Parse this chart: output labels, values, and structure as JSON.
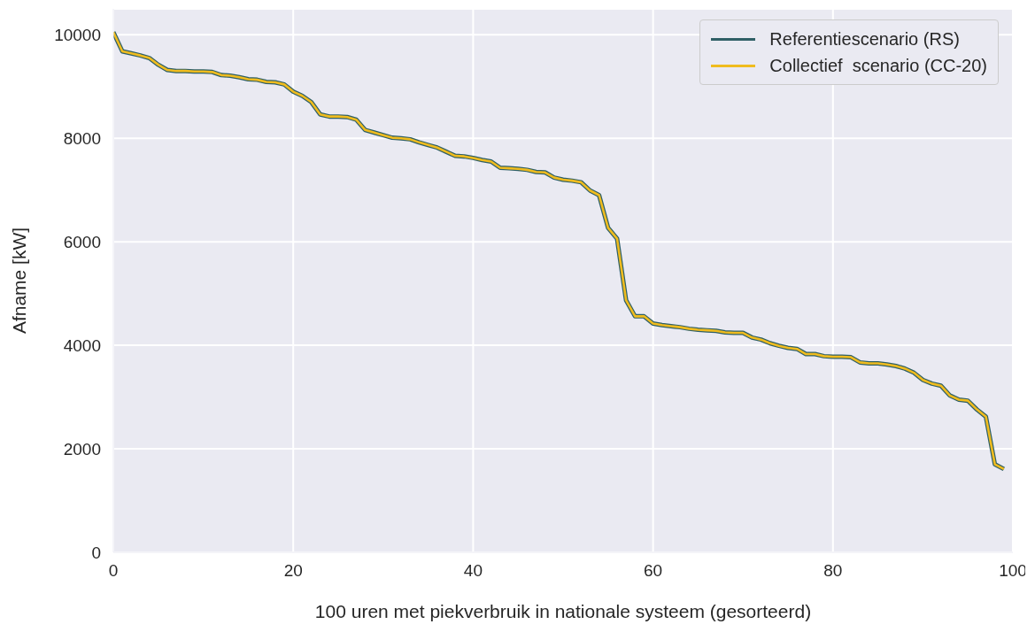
{
  "chart_data": {
    "type": "line",
    "xlabel": "100 uren met piekverbruik in nationale systeem (gesorteerd)",
    "ylabel": "Afname [kW]",
    "x": [
      0,
      1,
      2,
      3,
      4,
      5,
      6,
      7,
      8,
      9,
      10,
      11,
      12,
      13,
      14,
      15,
      16,
      17,
      18,
      19,
      20,
      21,
      22,
      23,
      24,
      25,
      26,
      27,
      28,
      29,
      30,
      31,
      32,
      33,
      34,
      35,
      36,
      37,
      38,
      39,
      40,
      41,
      42,
      43,
      44,
      45,
      46,
      47,
      48,
      49,
      50,
      51,
      52,
      53,
      54,
      55,
      56,
      57,
      58,
      59,
      60,
      61,
      62,
      63,
      64,
      65,
      66,
      67,
      68,
      69,
      70,
      71,
      72,
      73,
      74,
      75,
      76,
      77,
      78,
      79,
      80,
      81,
      82,
      83,
      84,
      85,
      86,
      87,
      88,
      89,
      90,
      91,
      92,
      93,
      94,
      95,
      96,
      97,
      98,
      99
    ],
    "series": [
      {
        "name": "Referentiescenario (RS)",
        "color": "#2f5f66",
        "values": [
          10050,
          9680,
          9640,
          9600,
          9550,
          9420,
          9320,
          9300,
          9300,
          9290,
          9290,
          9280,
          9220,
          9210,
          9180,
          9140,
          9130,
          9090,
          9080,
          9040,
          8900,
          8820,
          8700,
          8460,
          8420,
          8420,
          8410,
          8360,
          8160,
          8110,
          8060,
          8010,
          8000,
          7980,
          7920,
          7870,
          7820,
          7740,
          7660,
          7650,
          7620,
          7580,
          7550,
          7430,
          7420,
          7410,
          7390,
          7350,
          7340,
          7240,
          7200,
          7180,
          7150,
          6990,
          6900,
          6270,
          6060,
          4870,
          4560,
          4560,
          4420,
          4390,
          4370,
          4350,
          4320,
          4300,
          4290,
          4280,
          4250,
          4240,
          4240,
          4150,
          4110,
          4040,
          3990,
          3950,
          3930,
          3830,
          3830,
          3790,
          3780,
          3780,
          3770,
          3670,
          3650,
          3650,
          3630,
          3600,
          3550,
          3470,
          3330,
          3260,
          3220,
          3030,
          2950,
          2930,
          2760,
          2620,
          1700,
          1610
        ]
      },
      {
        "name": "Collectief  scenario (CC-20)",
        "color": "#f0bc1e",
        "values": [
          10050,
          9680,
          9640,
          9600,
          9550,
          9420,
          9320,
          9300,
          9300,
          9290,
          9290,
          9280,
          9220,
          9210,
          9180,
          9140,
          9130,
          9090,
          9080,
          9040,
          8900,
          8820,
          8700,
          8460,
          8420,
          8420,
          8410,
          8360,
          8160,
          8110,
          8060,
          8010,
          8000,
          7980,
          7920,
          7870,
          7820,
          7740,
          7660,
          7650,
          7620,
          7580,
          7550,
          7430,
          7420,
          7410,
          7390,
          7350,
          7340,
          7240,
          7200,
          7180,
          7150,
          6990,
          6900,
          6270,
          6060,
          4870,
          4560,
          4560,
          4420,
          4390,
          4370,
          4350,
          4320,
          4300,
          4290,
          4280,
          4250,
          4240,
          4240,
          4150,
          4110,
          4040,
          3990,
          3950,
          3930,
          3830,
          3830,
          3790,
          3780,
          3780,
          3770,
          3670,
          3650,
          3650,
          3630,
          3600,
          3550,
          3470,
          3330,
          3260,
          3220,
          3030,
          2950,
          2930,
          2760,
          2620,
          1700,
          1610
        ]
      }
    ],
    "xlim": [
      0,
      100
    ],
    "xticks": [
      0,
      20,
      40,
      60,
      80,
      100
    ],
    "ylim": [
      0,
      10500
    ],
    "yticks": [
      0,
      2000,
      4000,
      6000,
      8000,
      10000
    ],
    "grid": true,
    "legend": "top right",
    "marker": "none",
    "line_style": "solid"
  }
}
